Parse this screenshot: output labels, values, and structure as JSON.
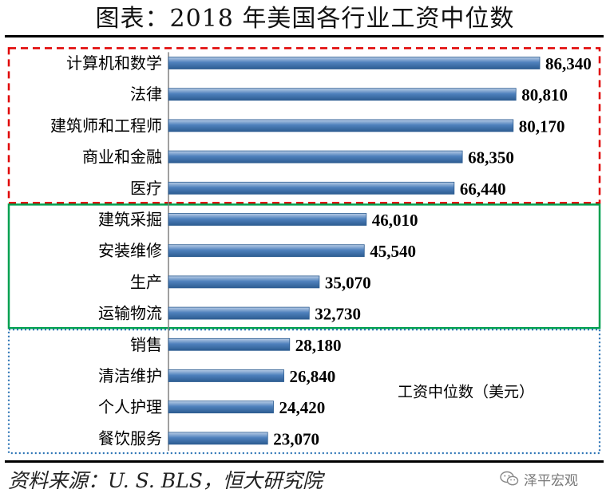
{
  "title": "图表：2018 年美国各行业工资中位数",
  "source": "资料来源：U. S.  BLS，恒大研究院",
  "watermark": {
    "text": "泽平宏观",
    "icon": "wechat-icon"
  },
  "colors": {
    "bar": "#4f81bd",
    "bar_dark": "#2d5d92",
    "bar_light": "#b9cde6",
    "group_high_border": "#e00000",
    "group_mid_border": "#00a050",
    "group_low_border": "#2e75b6"
  },
  "chart_data": {
    "type": "bar",
    "orientation": "horizontal",
    "title": "图表：2018 年美国各行业工资中位数",
    "series_label": "工资中位数（美元）",
    "xlim": [
      0,
      90000
    ],
    "grid": false,
    "categories": [
      "计算机和数学",
      "法律",
      "建筑师和工程师",
      "商业和金融",
      "医疗",
      "建筑采掘",
      "安装维修",
      "生产",
      "运输物流",
      "销售",
      "清洁维护",
      "个人护理",
      "餐饮服务"
    ],
    "values": [
      86340,
      80810,
      80170,
      68350,
      66440,
      46010,
      45540,
      35070,
      32730,
      28180,
      26840,
      24420,
      23070
    ],
    "value_labels": [
      "86,340",
      "80,810",
      "80,170",
      "68,350",
      "66,440",
      "46,010",
      "45,540",
      "35,070",
      "32,730",
      "28,180",
      "26,840",
      "24,420",
      "23,070"
    ],
    "groups": [
      {
        "name": "high",
        "border": "dashed",
        "color": "#e00000",
        "first": 0,
        "last": 4
      },
      {
        "name": "mid",
        "border": "solid",
        "color": "#00a050",
        "first": 5,
        "last": 8
      },
      {
        "name": "low",
        "border": "dotted",
        "color": "#2e75b6",
        "first": 9,
        "last": 12
      }
    ]
  }
}
